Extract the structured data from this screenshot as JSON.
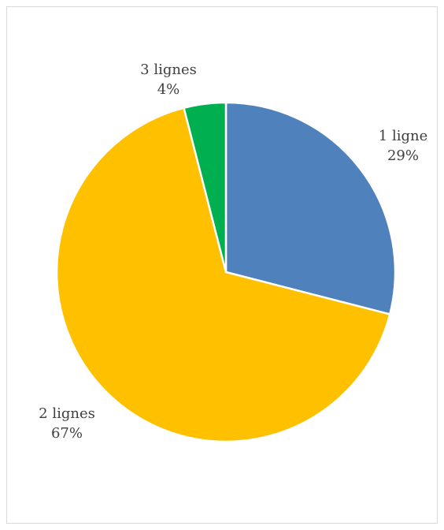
{
  "chart_data": {
    "type": "pie",
    "title": "",
    "slices": [
      {
        "label": "1 ligne",
        "value": 29,
        "percent_label": "29%",
        "color": "#4F81BD"
      },
      {
        "label": "2 lignes",
        "value": 67,
        "percent_label": "67%",
        "color": "#FFC000"
      },
      {
        "label": "3 lignes",
        "value": 4,
        "percent_label": "4%",
        "color": "#00B050"
      }
    ],
    "start_angle_deg": 0,
    "direction": "clockwise",
    "legend": "none",
    "data_labels": "outside, category name and percentage"
  }
}
